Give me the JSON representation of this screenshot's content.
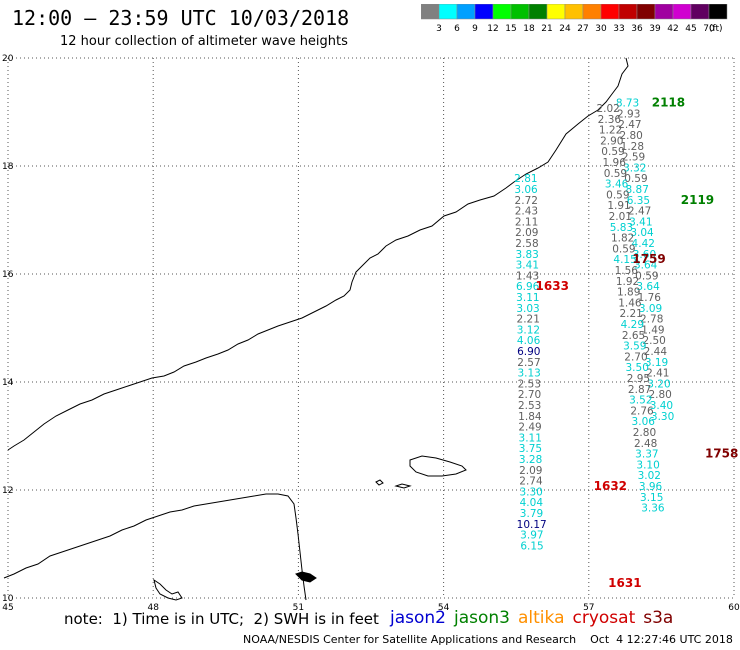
{
  "header": {
    "title": "12:00 – 23:59 UTC 10/03/2018",
    "subtitle": "12 hour collection of altimeter wave heights"
  },
  "scale": {
    "unit": "(ft)",
    "levels": [
      {
        "label": "3",
        "color": "#808080"
      },
      {
        "label": "6",
        "color": "#00ffff"
      },
      {
        "label": "9",
        "color": "#00a0ff"
      },
      {
        "label": "12",
        "color": "#0000ff"
      },
      {
        "label": "15",
        "color": "#00ff00"
      },
      {
        "label": "18",
        "color": "#00c000"
      },
      {
        "label": "21",
        "color": "#008000"
      },
      {
        "label": "24",
        "color": "#ffff00"
      },
      {
        "label": "27",
        "color": "#ffc000"
      },
      {
        "label": "30",
        "color": "#ff8000"
      },
      {
        "label": "33",
        "color": "#ff0000"
      },
      {
        "label": "36",
        "color": "#c00000"
      },
      {
        "label": "39",
        "color": "#800000"
      },
      {
        "label": "42",
        "color": "#a000a0"
      },
      {
        "label": "45",
        "color": "#d000d0"
      },
      {
        "label": "70",
        "color": "#600060"
      },
      {
        "label": "",
        "color": "#000000"
      }
    ]
  },
  "axes": {
    "x_ticks": [
      "45",
      "48",
      "51",
      "54",
      "57",
      "60"
    ],
    "y_ticks": [
      "20",
      "18",
      "16",
      "14",
      "12",
      "10"
    ],
    "xlim": [
      45,
      60
    ],
    "ylim": [
      10,
      20
    ]
  },
  "track_colors": {
    "grey": "#606060",
    "cyan": "#00d0d0",
    "navy": "#000080",
    "green": "#008000",
    "red": "#d00000",
    "maroon": "#800000"
  },
  "tracks": [
    {
      "x": 55.7,
      "y0": 17.7,
      "dy": -0.2,
      "items": [
        [
          "2.81",
          "cyan"
        ],
        [
          "3.06",
          "cyan"
        ],
        [
          "2.72",
          "grey"
        ],
        [
          "2.43",
          "grey"
        ],
        [
          "2.11",
          "grey"
        ],
        [
          "2.09",
          "grey"
        ],
        [
          "2.58",
          "grey"
        ],
        [
          "3.83",
          "cyan"
        ],
        [
          "3.41",
          "cyan"
        ],
        [
          "1.43",
          "grey"
        ],
        [
          "6.96",
          "cyan"
        ],
        [
          "3.11",
          "cyan"
        ],
        [
          "3.03",
          "cyan"
        ],
        [
          "2.21",
          "grey"
        ],
        [
          "3.12",
          "cyan"
        ],
        [
          "4.06",
          "cyan"
        ],
        [
          "6.90",
          "navy"
        ],
        [
          "2.57",
          "grey"
        ],
        [
          "3.13",
          "cyan"
        ],
        [
          "2.53",
          "grey"
        ],
        [
          "2.70",
          "grey"
        ],
        [
          "2.53",
          "grey"
        ],
        [
          "1.84",
          "grey"
        ],
        [
          "2.49",
          "grey"
        ],
        [
          "3.11",
          "cyan"
        ],
        [
          "3.75",
          "cyan"
        ],
        [
          "3.28",
          "cyan"
        ],
        [
          "2.09",
          "grey"
        ],
        [
          "2.74",
          "grey"
        ],
        [
          "3.30",
          "cyan"
        ],
        [
          "4.04",
          "cyan"
        ],
        [
          "3.79",
          "cyan"
        ],
        [
          "10.17",
          "navy"
        ],
        [
          "3.97",
          "cyan"
        ],
        [
          "6.15",
          "cyan"
        ]
      ]
    },
    {
      "x": 57.8,
      "y0": 19.1,
      "dy": -0.2,
      "items": [
        [
          "8.73",
          "cyan"
        ],
        [
          "2.93",
          "grey"
        ],
        [
          "2.47",
          "grey"
        ],
        [
          "2.80",
          "grey"
        ],
        [
          "1.28",
          "grey"
        ],
        [
          "2.59",
          "grey"
        ],
        [
          "3.32",
          "cyan"
        ],
        [
          "0.59",
          "grey"
        ],
        [
          "8.87",
          "cyan"
        ],
        [
          "6.35",
          "cyan"
        ],
        [
          "2.47",
          "grey"
        ],
        [
          "3.41",
          "cyan"
        ],
        [
          "3.04",
          "cyan"
        ],
        [
          "4.42",
          "cyan"
        ],
        [
          "3.60",
          "cyan"
        ],
        [
          "3.64",
          "cyan"
        ],
        [
          "0.59",
          "grey"
        ],
        [
          "3.64",
          "cyan"
        ],
        [
          "1.76",
          "grey"
        ],
        [
          "3.09",
          "cyan"
        ],
        [
          "2.78",
          "grey"
        ],
        [
          "1.49",
          "grey"
        ],
        [
          "2.50",
          "grey"
        ],
        [
          "2.44",
          "grey"
        ],
        [
          "3.19",
          "cyan"
        ],
        [
          "2.41",
          "grey"
        ],
        [
          "3.20",
          "cyan"
        ],
        [
          "2.80",
          "grey"
        ],
        [
          "3.40",
          "cyan"
        ],
        [
          "3.30",
          "cyan"
        ]
      ]
    },
    {
      "x": 57.4,
      "y0": 19.0,
      "dy": -0.2,
      "items": [
        [
          "2.02",
          "grey"
        ],
        [
          "2.36",
          "grey"
        ],
        [
          "1.22",
          "grey"
        ],
        [
          "2.90",
          "grey"
        ],
        [
          "0.59",
          "grey"
        ],
        [
          "1.96",
          "grey"
        ],
        [
          "0.59",
          "grey"
        ],
        [
          "3.46",
          "cyan"
        ],
        [
          "0.59",
          "grey"
        ],
        [
          "1.91",
          "grey"
        ],
        [
          "2.01",
          "grey"
        ],
        [
          "5.83",
          "cyan"
        ],
        [
          "1.82",
          "grey"
        ],
        [
          "0.59",
          "grey"
        ],
        [
          "4.15",
          "cyan"
        ],
        [
          "1.56",
          "grey"
        ],
        [
          "1.92",
          "grey"
        ],
        [
          "1.89",
          "grey"
        ],
        [
          "1.46",
          "grey"
        ],
        [
          "2.21",
          "grey"
        ],
        [
          "4.29",
          "cyan"
        ],
        [
          "2.65",
          "grey"
        ],
        [
          "3.59",
          "cyan"
        ],
        [
          "2.70",
          "grey"
        ],
        [
          "3.50",
          "cyan"
        ],
        [
          "2.95",
          "grey"
        ],
        [
          "2.87",
          "grey"
        ],
        [
          "3.52",
          "cyan"
        ],
        [
          "2.76",
          "grey"
        ],
        [
          "3.06",
          "cyan"
        ],
        [
          "2.80",
          "grey"
        ],
        [
          "2.48",
          "grey"
        ],
        [
          "3.37",
          "cyan"
        ],
        [
          "3.10",
          "cyan"
        ],
        [
          "3.02",
          "cyan"
        ],
        [
          "3.96",
          "cyan"
        ],
        [
          "3.15",
          "cyan"
        ],
        [
          "3.36",
          "cyan"
        ]
      ]
    }
  ],
  "time_labels": [
    {
      "text": "2118",
      "lon": 58.3,
      "lat": 19.1,
      "color": "green"
    },
    {
      "text": "2119",
      "lon": 58.9,
      "lat": 17.3,
      "color": "green"
    },
    {
      "text": "1759",
      "lon": 57.9,
      "lat": 16.2,
      "color": "maroon"
    },
    {
      "text": "1633",
      "lon": 55.9,
      "lat": 15.7,
      "color": "red"
    },
    {
      "text": "1758",
      "lon": 59.4,
      "lat": 12.6,
      "color": "maroon"
    },
    {
      "text": "1632",
      "lon": 57.1,
      "lat": 12.0,
      "color": "red"
    },
    {
      "text": "1631",
      "lon": 57.4,
      "lat": 10.2,
      "color": "red"
    }
  ],
  "notes": {
    "text": "note:  1) Time is in UTC;  2) SWH is in feet"
  },
  "satellites": [
    {
      "name": "jason2",
      "color": "#0000d0"
    },
    {
      "name": "jason3",
      "color": "#008000"
    },
    {
      "name": "altika",
      "color": "#ff9000"
    },
    {
      "name": "cryosat",
      "color": "#d00000"
    },
    {
      "name": "s3a",
      "color": "#800000"
    }
  ],
  "footer": {
    "text": "NOAA/NESDIS Center for Satellite Applications and Research    Oct  4 12:27:46 UTC 2018"
  }
}
